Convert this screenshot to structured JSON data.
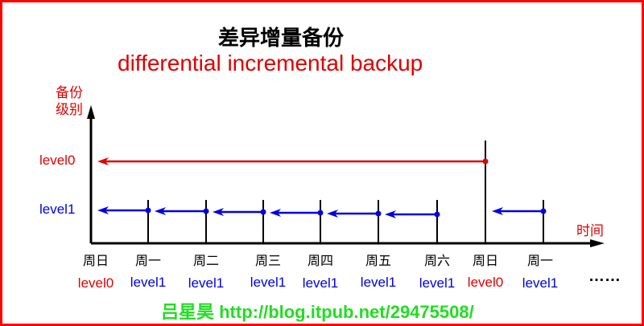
{
  "title": "差异增量备份",
  "subtitle": "differential incremental backup",
  "y_axis_label": "备份级别",
  "x_axis_label": "时间",
  "y_levels": [
    {
      "label": "level0",
      "color": "#e00000"
    },
    {
      "label": "level1",
      "color": "#0000e0"
    }
  ],
  "days": [
    {
      "day": "周日",
      "level": "level0"
    },
    {
      "day": "周一",
      "level": "level1"
    },
    {
      "day": "周二",
      "level": "level1"
    },
    {
      "day": "周三",
      "level": "level1"
    },
    {
      "day": "周四",
      "level": "level1"
    },
    {
      "day": "周五",
      "level": "level1"
    },
    {
      "day": "周六",
      "level": "level1"
    },
    {
      "day": "周日",
      "level": "level0"
    },
    {
      "day": "周一",
      "level": "level1"
    }
  ],
  "ellipsis": "……",
  "footer": "吕星昊 http://blog.itpub.net/29475508/",
  "colors": {
    "level0": "#e00000",
    "level1": "#0000e0",
    "footer": "#22dd22",
    "border": "#ff0000"
  }
}
